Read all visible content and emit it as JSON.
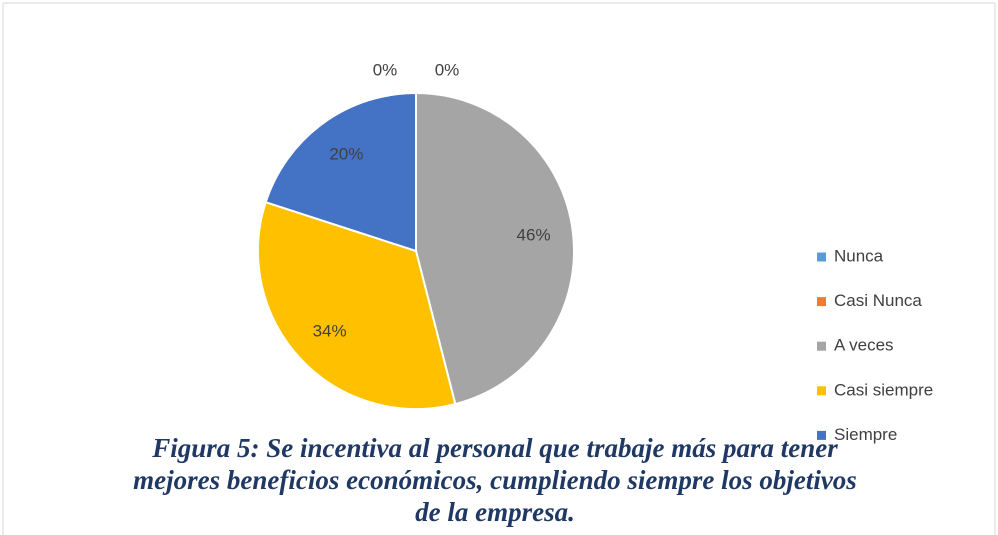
{
  "chart_data": {
    "type": "pie",
    "title": "Figura 5: Se incentiva al personal que trabaje más para tener mejores beneficios económicos, cumpliendo siempre los objetivos de la empresa.",
    "categories": [
      "Nunca",
      "Casi Nunca",
      "A veces",
      "Casi siempre",
      "Siempre"
    ],
    "values": [
      0,
      0,
      46,
      34,
      20
    ],
    "value_labels": [
      "0%",
      "0%",
      "46%",
      "34%",
      "20%"
    ],
    "colors": [
      "#5b9bd5",
      "#ed7d31",
      "#a5a5a5",
      "#ffc000",
      "#4472c4"
    ],
    "legend": "right"
  }
}
